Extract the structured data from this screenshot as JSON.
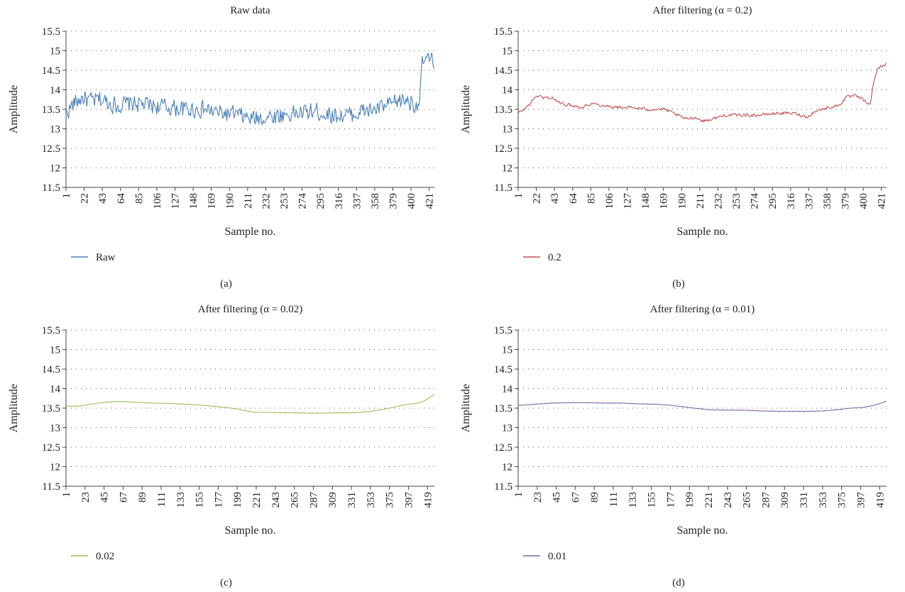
{
  "chart_data": [
    {
      "type": "line",
      "panel": "a",
      "title": "Raw data",
      "xlabel": "Sample no.",
      "ylabel": "Amplitude",
      "caption": "(a)",
      "ylim": [
        11.5,
        15.5
      ],
      "yticks": [
        "11.5",
        "12",
        "12.5",
        "13",
        "13.5",
        "14",
        "14.5",
        "15",
        "15.5"
      ],
      "xticks": [
        1,
        22,
        43,
        64,
        85,
        106,
        127,
        148,
        169,
        190,
        211,
        232,
        253,
        274,
        295,
        316,
        337,
        358,
        379,
        400,
        421
      ],
      "xmax": 427,
      "grid": true,
      "legend_position": "bottom-left",
      "series": [
        {
          "name": "Raw",
          "color": "#4a7fb5",
          "noise": 0.28,
          "x": [
            1,
            10,
            20,
            30,
            40,
            60,
            80,
            100,
            120,
            140,
            160,
            180,
            200,
            215,
            230,
            250,
            270,
            290,
            310,
            330,
            345,
            360,
            375,
            385,
            395,
            400,
            406,
            410,
            413,
            416,
            420,
            425
          ],
          "values": [
            13.4,
            13.65,
            13.8,
            13.7,
            13.75,
            13.6,
            13.65,
            13.6,
            13.55,
            13.5,
            13.5,
            13.4,
            13.35,
            13.25,
            13.3,
            13.35,
            13.4,
            13.45,
            13.35,
            13.35,
            13.45,
            13.5,
            13.6,
            13.7,
            13.75,
            13.7,
            13.6,
            13.8,
            14.6,
            14.8,
            14.75,
            14.7
          ]
        }
      ]
    },
    {
      "type": "line",
      "panel": "b",
      "title": "After filtering (α = 0.2)",
      "xlabel": "Sample no.",
      "ylabel": "Amplitude",
      "caption": "(b)",
      "ylim": [
        11.5,
        15.5
      ],
      "yticks": [
        "11.5",
        "12",
        "12.5",
        "13",
        "13.5",
        "14",
        "14.5",
        "15",
        "15.5"
      ],
      "xticks": [
        1,
        22,
        43,
        64,
        85,
        106,
        127,
        148,
        169,
        190,
        211,
        232,
        253,
        274,
        295,
        316,
        337,
        358,
        379,
        400,
        421
      ],
      "xmax": 427,
      "grid": true,
      "legend_position": "bottom-left",
      "series": [
        {
          "name": "0.2",
          "color": "#c0504d",
          "noise": 0.05,
          "x": [
            1,
            8,
            15,
            22,
            30,
            40,
            50,
            64,
            75,
            85,
            100,
            115,
            130,
            150,
            170,
            185,
            195,
            205,
            215,
            225,
            240,
            260,
            280,
            300,
            320,
            335,
            345,
            360,
            372,
            380,
            390,
            400,
            405,
            408,
            412,
            416,
            420,
            425
          ],
          "values": [
            13.4,
            13.5,
            13.65,
            13.85,
            13.8,
            13.8,
            13.65,
            13.6,
            13.55,
            13.65,
            13.6,
            13.55,
            13.55,
            13.5,
            13.5,
            13.35,
            13.25,
            13.3,
            13.2,
            13.25,
            13.35,
            13.35,
            13.35,
            13.4,
            13.4,
            13.3,
            13.45,
            13.55,
            13.6,
            13.8,
            13.85,
            13.75,
            13.65,
            13.6,
            14.2,
            14.5,
            14.6,
            14.65
          ]
        }
      ]
    },
    {
      "type": "line",
      "panel": "c",
      "title": "After filtering (α = 0.02)",
      "xlabel": "Sample no.",
      "ylabel": "Amplitude",
      "caption": "(c)",
      "ylim": [
        11.5,
        15.5
      ],
      "yticks": [
        "11.5",
        "12",
        "12.5",
        "13",
        "13.5",
        "14",
        "14.5",
        "15",
        "15.5"
      ],
      "xticks": [
        1,
        23,
        45,
        67,
        89,
        111,
        133,
        155,
        177,
        199,
        221,
        243,
        265,
        287,
        309,
        331,
        353,
        375,
        397,
        419
      ],
      "xmax": 427,
      "grid": true,
      "legend_position": "bottom-left",
      "series": [
        {
          "name": "0.02",
          "color": "#9bbb59",
          "noise": 0.0,
          "x": [
            1,
            15,
            30,
            45,
            60,
            67,
            80,
            100,
            120,
            140,
            155,
            170,
            185,
            199,
            210,
            221,
            240,
            265,
            287,
            309,
            331,
            345,
            360,
            375,
            385,
            397,
            405,
            412,
            420,
            427
          ],
          "values": [
            13.55,
            13.55,
            13.6,
            13.65,
            13.67,
            13.67,
            13.65,
            13.63,
            13.62,
            13.6,
            13.58,
            13.55,
            13.52,
            13.48,
            13.43,
            13.39,
            13.39,
            13.38,
            13.37,
            13.38,
            13.38,
            13.4,
            13.44,
            13.5,
            13.55,
            13.6,
            13.62,
            13.65,
            13.75,
            13.85
          ]
        }
      ]
    },
    {
      "type": "line",
      "panel": "d",
      "title": "After filtering (α = 0.01)",
      "xlabel": "Sample no.",
      "ylabel": "Amplitude",
      "caption": "(d)",
      "ylim": [
        11.5,
        15.5
      ],
      "yticks": [
        "11.5",
        "12",
        "12.5",
        "13",
        "13.5",
        "14",
        "14.5",
        "15",
        "15.5"
      ],
      "xticks": [
        1,
        23,
        45,
        67,
        89,
        111,
        133,
        155,
        177,
        199,
        221,
        243,
        265,
        287,
        309,
        331,
        353,
        375,
        397,
        419
      ],
      "xmax": 427,
      "grid": true,
      "legend_position": "bottom-left",
      "series": [
        {
          "name": "0.01",
          "color": "#8064a2",
          "noise": 0.0,
          "x": [
            1,
            20,
            40,
            60,
            80,
            100,
            120,
            140,
            160,
            175,
            190,
            205,
            221,
            240,
            260,
            280,
            300,
            320,
            340,
            355,
            370,
            385,
            400,
            410,
            420,
            427
          ],
          "values": [
            13.57,
            13.6,
            13.63,
            13.64,
            13.64,
            13.63,
            13.63,
            13.61,
            13.6,
            13.58,
            13.54,
            13.5,
            13.46,
            13.45,
            13.45,
            13.43,
            13.42,
            13.42,
            13.42,
            13.43,
            13.46,
            13.5,
            13.52,
            13.56,
            13.62,
            13.68
          ]
        }
      ]
    }
  ]
}
